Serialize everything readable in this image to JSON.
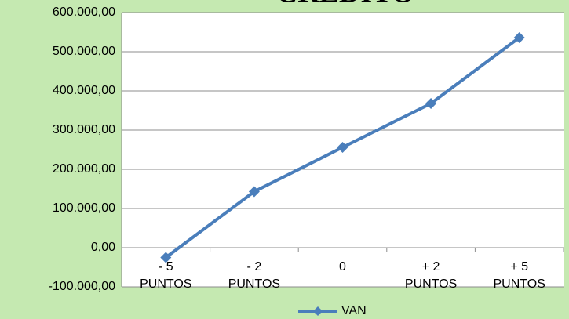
{
  "chart_data": {
    "type": "line",
    "title": "CRÉDITO",
    "categories": [
      "- 5\nPUNTOS",
      "- 2\nPUNTOS",
      "0",
      "+ 2\nPUNTOS",
      "+ 5\nPUNTOS"
    ],
    "series": [
      {
        "name": "VAN",
        "color": "#4a7ebb",
        "values": [
          -25000,
          143000,
          256000,
          368000,
          536000
        ]
      }
    ],
    "ylim": [
      -100000,
      600000
    ],
    "yticks": [
      {
        "value": -100000,
        "label": "-100.000,00"
      },
      {
        "value": 0,
        "label": "0,00"
      },
      {
        "value": 100000,
        "label": "100.000,00"
      },
      {
        "value": 200000,
        "label": "200.000,00"
      },
      {
        "value": 300000,
        "label": "300.000,00"
      },
      {
        "value": 400000,
        "label": "400.000,00"
      },
      {
        "value": 500000,
        "label": "500.000,00"
      },
      {
        "value": 600000,
        "label": "600.000,00"
      }
    ],
    "grid": true,
    "legend": "bottom"
  }
}
